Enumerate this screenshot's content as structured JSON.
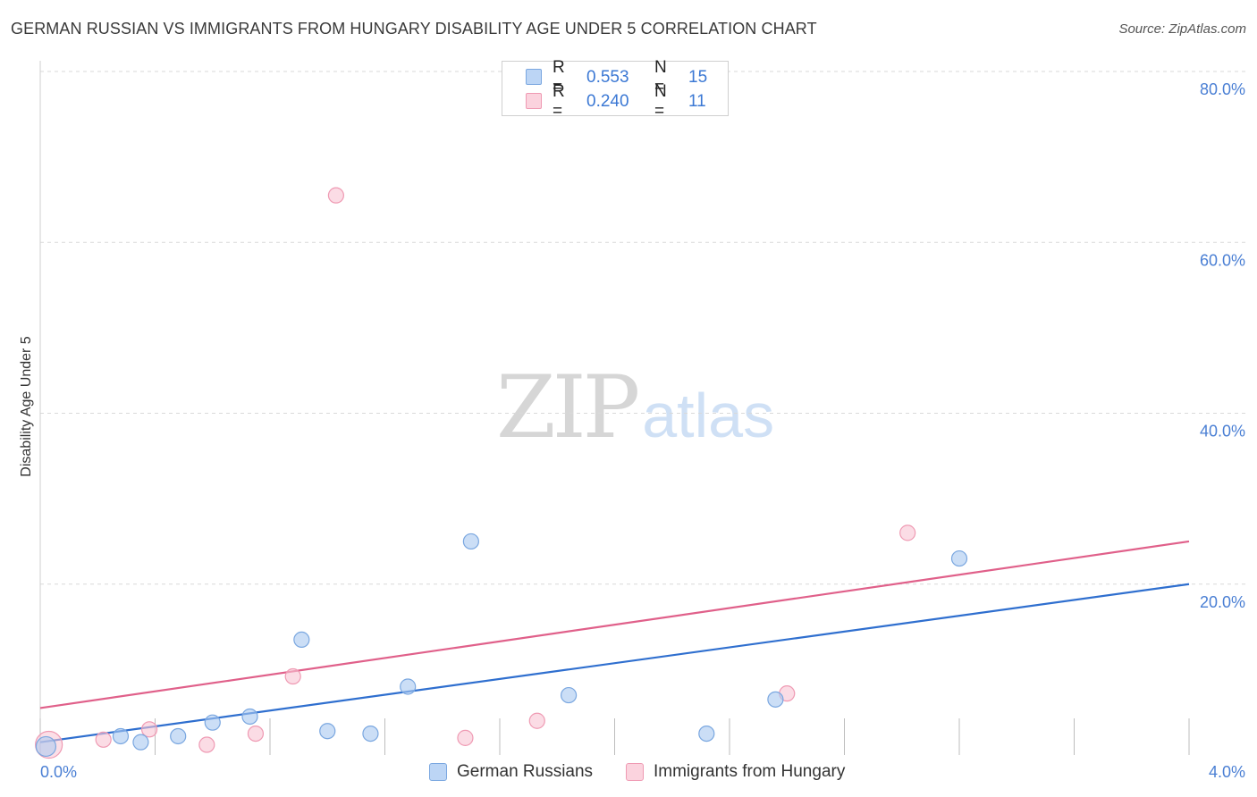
{
  "header": {
    "title": "GERMAN RUSSIAN VS IMMIGRANTS FROM HUNGARY DISABILITY AGE UNDER 5 CORRELATION CHART",
    "source": "Source: ZipAtlas.com"
  },
  "watermark": {
    "zip": "ZIP",
    "atlas": "atlas"
  },
  "legend_stats": [
    {
      "r_label": "R =",
      "r_value": "0.553",
      "n_label": "N =",
      "n_value": "15",
      "color": "#a9c8f0"
    },
    {
      "r_label": "R =",
      "r_value": "0.240",
      "n_label": "N =",
      "n_value": "11",
      "color": "#f6b8c9"
    }
  ],
  "chart_data": {
    "type": "scatter",
    "title": "GERMAN RUSSIAN VS IMMIGRANTS FROM HUNGARY DISABILITY AGE UNDER 5 CORRELATION CHART",
    "xlabel": "",
    "ylabel": "Disability Age Under 5",
    "xlim": [
      0,
      4
    ],
    "ylim": [
      0,
      80
    ],
    "x_tick_labels": [
      "0.0%",
      "4.0%"
    ],
    "y_tick_labels": [
      "20.0%",
      "40.0%",
      "60.0%",
      "80.0%"
    ],
    "y_ticks": [
      20,
      40,
      60,
      80
    ],
    "grid": true,
    "legend_position": "bottom",
    "series": [
      {
        "name": "German Russians",
        "color": "#a9c8f0",
        "stroke": "#7aa7e0",
        "line_color": "#2f6fcf",
        "points": [
          [
            0.02,
            1.0
          ],
          [
            0.28,
            2.2
          ],
          [
            0.35,
            1.5
          ],
          [
            0.48,
            2.2
          ],
          [
            0.6,
            3.8
          ],
          [
            0.73,
            4.5
          ],
          [
            0.91,
            13.5
          ],
          [
            1.0,
            2.8
          ],
          [
            1.15,
            2.5
          ],
          [
            1.28,
            8.0
          ],
          [
            1.5,
            25.0
          ],
          [
            1.84,
            7.0
          ],
          [
            2.32,
            2.5
          ],
          [
            2.56,
            6.5
          ],
          [
            3.2,
            23.0
          ]
        ],
        "trend": [
          [
            0,
            1.5
          ],
          [
            4,
            20.0
          ]
        ]
      },
      {
        "name": "Immigrants from Hungary",
        "color": "#f8c5d3",
        "stroke": "#ef9ab3",
        "line_color": "#e0608a",
        "points": [
          [
            0.03,
            1.2
          ],
          [
            0.22,
            1.8
          ],
          [
            0.38,
            3.0
          ],
          [
            0.58,
            1.2
          ],
          [
            0.75,
            2.5
          ],
          [
            0.88,
            9.2
          ],
          [
            1.03,
            65.5
          ],
          [
            1.48,
            2.0
          ],
          [
            1.73,
            4.0
          ],
          [
            2.6,
            7.2
          ],
          [
            3.02,
            26.0
          ]
        ],
        "trend": [
          [
            0,
            5.5
          ],
          [
            4,
            25.0
          ]
        ]
      }
    ]
  }
}
